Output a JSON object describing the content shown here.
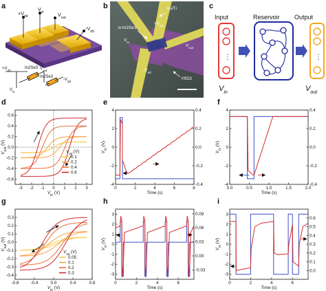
{
  "panel_labels": [
    "a",
    "b",
    "c",
    "d",
    "e",
    "f",
    "g",
    "h",
    "i"
  ],
  "panel_a": {
    "labels": [
      "+V",
      "V",
      "-V",
      "+V",
      "V",
      "-V",
      "V",
      "In2Se3",
      "In2Se3",
      "V",
      "V"
    ],
    "subs": [
      "dd",
      "in",
      "dd",
      "dd",
      "in",
      "dd",
      "in",
      "",
      "",
      "out",
      "out"
    ]
  },
  "panel_b": {
    "labels": [
      "Au/Ti",
      "α-In2Se3",
      "+V",
      "V",
      "V",
      "-V",
      "HfO2"
    ],
    "subs": [
      "",
      "",
      "dd",
      "in",
      "out",
      "dd",
      ""
    ]
  },
  "panel_c": {
    "input_label": "Input",
    "reservoir_label": "Reservoir",
    "output_label": "Output",
    "vin": "V",
    "vin_sub": "in",
    "vout": "V",
    "vout_sub": "out",
    "dots": "⋮",
    "colors": {
      "input": "#e53935",
      "reservoir": "#1e2a9a",
      "output": "#f5a623",
      "arrow": "#3f51b5"
    }
  },
  "chart_data": [
    {
      "panel": "d",
      "type": "line",
      "xlabel": "V",
      "xlabel_sub": "in",
      "xlabel_unit": "(V)",
      "ylabel": "V",
      "ylabel_sub": "out",
      "ylabel_unit": "(V)",
      "xlim": [
        -3.5,
        3.5
      ],
      "ylim": [
        -0.7,
        0.7
      ],
      "xticks": [
        "-3",
        "-2",
        "-1",
        "0",
        "1",
        "2",
        "3"
      ],
      "yticks": [
        "-0.6",
        "-0.4",
        "-0.2",
        "0.0",
        "0.2",
        "0.4",
        "0.6"
      ],
      "legend_title": "V",
      "legend_title_sub": "dd",
      "legend_unit": "(V)",
      "series": [
        {
          "name": "0.1",
          "color": "#f7c948",
          "amplitude": 0.1
        },
        {
          "name": "0.2",
          "color": "#f4a340",
          "amplitude": 0.2
        },
        {
          "name": "0.4",
          "color": "#e8703a",
          "amplitude": 0.4
        },
        {
          "name": "0.6",
          "color": "#d6262b",
          "amplitude": 0.55
        }
      ]
    },
    {
      "panel": "e",
      "type": "line",
      "xlabel": "Time",
      "xlabel_unit": "(s)",
      "ylabel": "V",
      "ylabel_sub": "in",
      "ylabel_unit": "(V)",
      "xlim": [
        0,
        8
      ],
      "ylim": [
        -4,
        4
      ],
      "y2lim": [
        -0.4,
        0.4
      ],
      "xticks": [
        "0",
        "2",
        "4",
        "6",
        "8"
      ],
      "yticks": [
        "-4",
        "-2",
        "0",
        "2",
        "4"
      ],
      "y2ticks": [
        "-0.4",
        "-0.2",
        "0.0",
        "0.2",
        "0.4"
      ],
      "vin_pulse": {
        "start": 0.45,
        "end": 0.7,
        "low": -3.4,
        "base": -3.4,
        "high": 3.2
      },
      "vout": {
        "peak": 0.3,
        "min": -0.29,
        "end": 0.22
      }
    },
    {
      "panel": "f",
      "type": "line",
      "xlabel": "Time",
      "xlabel_unit": "(s)",
      "ylabel": "V",
      "ylabel_sub": "in",
      "ylabel_unit": "(V)",
      "xlim": [
        0,
        2
      ],
      "ylim": [
        -4,
        4
      ],
      "y2lim": [
        -0.4,
        0.4
      ],
      "xticks": [
        "0.0",
        "0.5",
        "1.0",
        "1.5",
        "2.0"
      ],
      "yticks": [
        "-4",
        "-2",
        "0",
        "2",
        "4"
      ],
      "y2ticks": [
        "-0.4",
        "-0.2",
        "0.0",
        "0.2",
        "0.4"
      ]
    },
    {
      "panel": "g",
      "type": "line",
      "xlabel": "V",
      "xlabel_sub": "in",
      "xlabel_unit": "(V)",
      "ylabel": "V",
      "ylabel_sub": "out",
      "ylabel_unit": "(V)",
      "xlim": [
        -0.8,
        0.8
      ],
      "ylim": [
        -0.45,
        0.4
      ],
      "xticks": [
        "-0.8",
        "-0.4",
        "0.0",
        "0.4",
        "0.8"
      ],
      "yticks": [
        "-0.4",
        "-0.3",
        "-0.2",
        "-0.1",
        "0.0",
        "0.1",
        "0.2",
        "0.3"
      ],
      "legend_title": "V",
      "legend_title_sub": "dd",
      "legend_unit": "(V)",
      "series": [
        {
          "name": "0.05",
          "color": "#f7c948"
        },
        {
          "name": "0.1",
          "color": "#f4a340"
        },
        {
          "name": "0.2",
          "color": "#e8703a"
        },
        {
          "name": "0.3",
          "color": "#d6262b"
        }
      ]
    },
    {
      "panel": "h",
      "type": "line",
      "xlabel": "Time",
      "xlabel_unit": "(s)",
      "ylabel": "V",
      "ylabel_sub": "in",
      "ylabel_unit": "(V)",
      "xlim": [
        0,
        7.5
      ],
      "ylim": [
        -3.5,
        3.5
      ],
      "y2lim": [
        -0.05,
        0.1
      ],
      "xticks": [
        "0",
        "2",
        "4",
        "6"
      ],
      "yticks": [
        "-3",
        "-2",
        "-1",
        "0",
        "1",
        "2",
        "3"
      ],
      "y2ticks": [
        "-0.03",
        "0.00",
        "0.03",
        "0.06",
        "0.09"
      ]
    },
    {
      "panel": "i",
      "type": "line",
      "xlabel": "Time",
      "xlabel_unit": "(s)",
      "ylabel": "V",
      "ylabel_sub": "in",
      "ylabel_unit": "(V)",
      "xlim": [
        0,
        7.5
      ],
      "ylim": [
        -3.5,
        3.5
      ],
      "y2lim": [
        -0.1,
        0.7
      ],
      "xticks": [
        "0",
        "2",
        "4",
        "6"
      ],
      "yticks": [
        "-3",
        "-2",
        "-1",
        "0",
        "1",
        "2",
        "3"
      ],
      "y2ticks": [
        "0.0",
        "0.1",
        "0.2",
        "0.3",
        "0.4",
        "0.5",
        "0.6"
      ]
    }
  ],
  "colors": {
    "vin": "#3a4fc7",
    "vout": "#d62a2a",
    "axis": "#111111"
  }
}
